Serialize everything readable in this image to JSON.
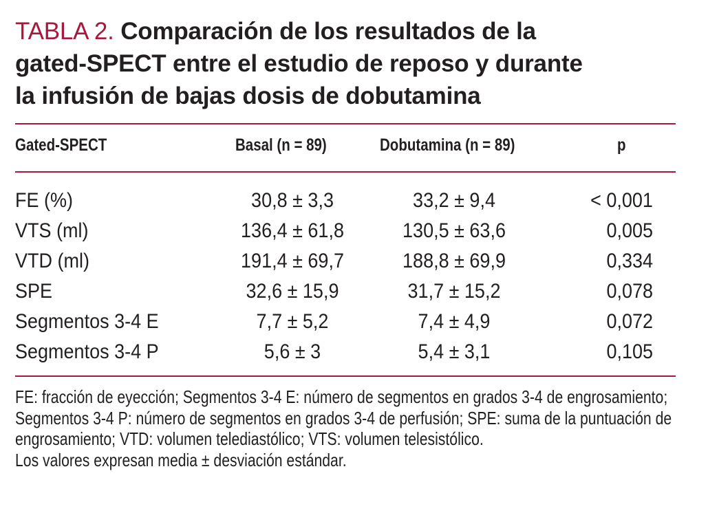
{
  "title": {
    "prefix": "TABLA 2.",
    "line1": "Comparación de los resultados de la",
    "line2": "gated-SPECT entre el estudio de reposo y durante",
    "line3": "la infusión de bajas dosis de dobutamina"
  },
  "table": {
    "headers": [
      "Gated-SPECT",
      "Basal (n = 89)",
      "Dobutamina (n = 89)",
      "p"
    ],
    "rows": [
      {
        "label": "FE (%)",
        "basal": "30,8 ± 3,3",
        "dobutamina": "33,2 ± 9,4",
        "p": "< 0,001"
      },
      {
        "label": "VTS (ml)",
        "basal": "136,4 ± 61,8",
        "dobutamina": "130,5 ± 63,6",
        "p": "0,005"
      },
      {
        "label": "VTD (ml)",
        "basal": "191,4 ± 69,7",
        "dobutamina": "188,8 ± 69,9",
        "p": "0,334"
      },
      {
        "label": "SPE",
        "basal": "32,6 ± 15,9",
        "dobutamina": "31,7 ± 15,2",
        "p": "0,078"
      },
      {
        "label": "Segmentos 3-4 E",
        "basal": "7,7 ± 5,2",
        "dobutamina": "7,4 ± 4,9",
        "p": "0,072"
      },
      {
        "label": "Segmentos 3-4 P",
        "basal": "5,6 ± 3",
        "dobutamina": "5,4 ± 3,1",
        "p": "0,105"
      }
    ]
  },
  "footnote": {
    "abbreviations": "FE: fracción de eyección; Segmentos 3-4 E: número de segmentos en grados 3-4 de engrosamiento; Segmentos 3-4 P: número de segmentos en grados 3-4 de perfusión; SPE: suma de la puntuación de engrosamiento; VTD: volumen telediastólico; VTS: volumen telesistólico.",
    "values_note": "Los valores expresan media ± desviación estándar."
  },
  "colors": {
    "accent": "#a6193c",
    "text": "#231f20"
  }
}
